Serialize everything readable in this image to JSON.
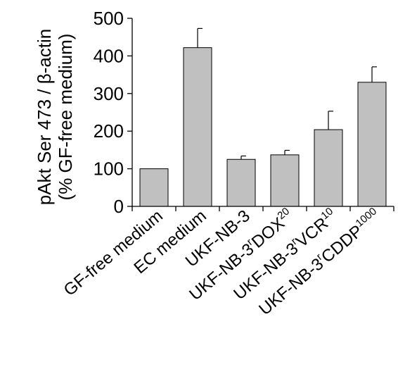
{
  "chart_data": {
    "type": "bar",
    "ylabel_line1": "pAkt Ser 473 / β-actin",
    "ylabel_line2": "(% GF-free medium)",
    "ylim": [
      0,
      500
    ],
    "yticks": [
      "0",
      "100",
      "200",
      "300",
      "400",
      "500"
    ],
    "categories": [
      {
        "label": "GF-free medium",
        "base": "GF-free medium",
        "sup_r": "",
        "mid": "",
        "sup_n": ""
      },
      {
        "label": "EC medium",
        "base": "EC medium",
        "sup_r": "",
        "mid": "",
        "sup_n": ""
      },
      {
        "label": "UKF-NB-3",
        "base": "UKF-NB-3",
        "sup_r": "",
        "mid": "",
        "sup_n": ""
      },
      {
        "label": "UKF-NB-3rDOX20",
        "base": "UKF-NB-3",
        "sup_r": "r",
        "mid": "DOX",
        "sup_n": "20"
      },
      {
        "label": "UKF-NB-3rVCR10",
        "base": "UKF-NB-3",
        "sup_r": "r",
        "mid": "VCR",
        "sup_n": "10"
      },
      {
        "label": "UKF-NB-3rCDDP1000",
        "base": "UKF-NB-3",
        "sup_r": "r",
        "mid": "CDDP",
        "sup_n": "1000"
      }
    ],
    "values": [
      100,
      422,
      125,
      137,
      204,
      330
    ],
    "errors": [
      0,
      51,
      9,
      12,
      49,
      41
    ],
    "bar_color": "#c0c0c0",
    "grid": false,
    "legend": "none"
  }
}
